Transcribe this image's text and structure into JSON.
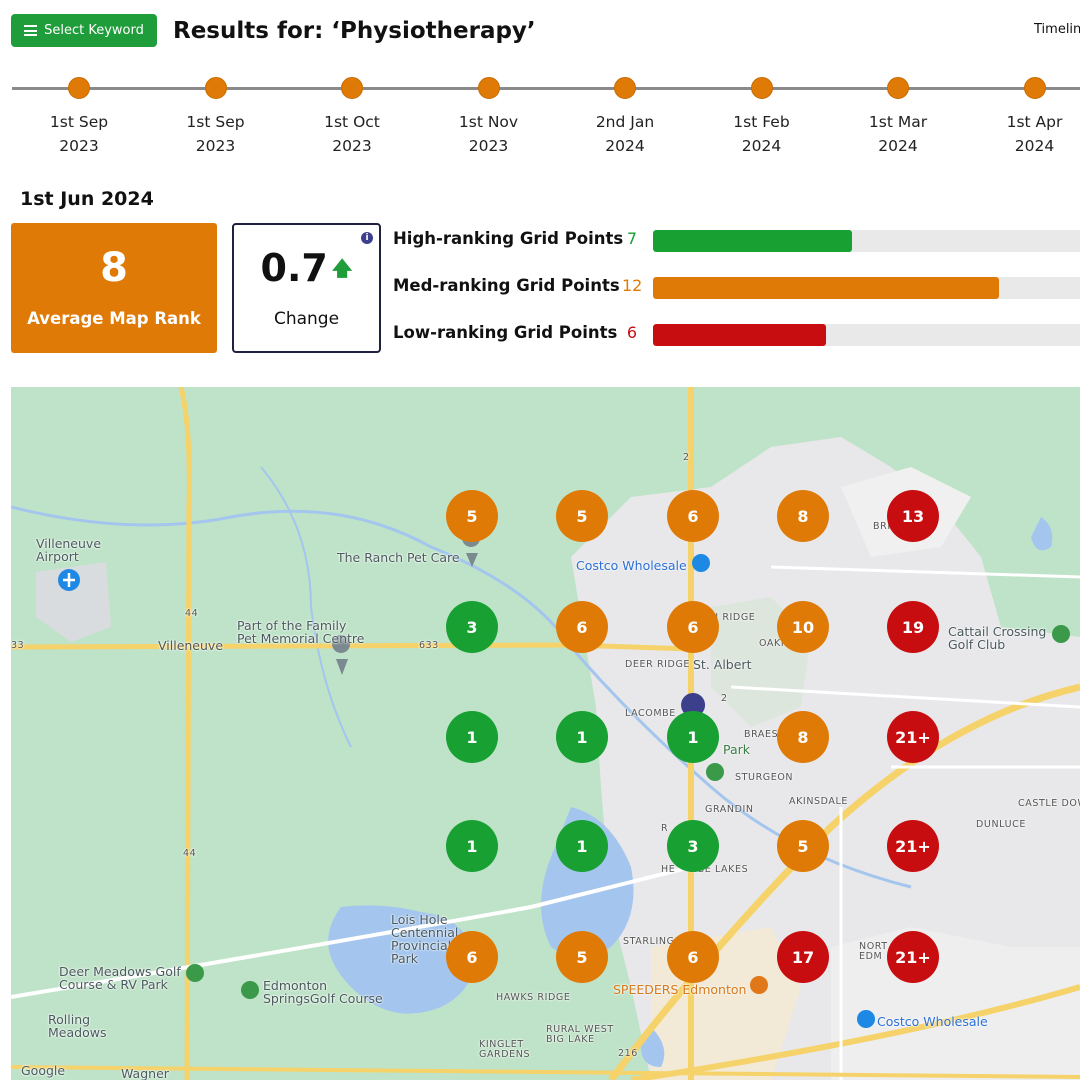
{
  "header": {
    "select_keyword_label": "Select Keyword",
    "results_title": "Results for: ‘Physiotherapy’",
    "timeline_link": "Timelin"
  },
  "timeline": [
    {
      "day": "1st Sep",
      "year": "2023"
    },
    {
      "day": "1st Sep",
      "year": "2023"
    },
    {
      "day": "1st Oct",
      "year": "2023"
    },
    {
      "day": "1st Nov",
      "year": "2023"
    },
    {
      "day": "2nd Jan",
      "year": "2024"
    },
    {
      "day": "1st Feb",
      "year": "2024"
    },
    {
      "day": "1st Mar",
      "year": "2024"
    },
    {
      "day": "1st Apr",
      "year": "2024"
    }
  ],
  "stats": {
    "current_date": "1st Jun 2024",
    "average_map_rank": "8",
    "average_map_rank_label": "Average Map Rank",
    "change_value": "0.7",
    "change_label": "Change",
    "change_direction_icon": "up-arrow-icon"
  },
  "rankings": [
    {
      "label": "High-ranking Grid Points",
      "count": "7",
      "fraction": 0.465,
      "color": "#18a033"
    },
    {
      "label": "Med-ranking Grid Points",
      "count": "12",
      "fraction": 0.81,
      "color": "#e07a06"
    },
    {
      "label": "Low-ranking Grid Points",
      "count": "6",
      "fraction": 0.405,
      "color": "#c80d10"
    }
  ],
  "grid_ranks": [
    [
      "5",
      "5",
      "6",
      "8",
      "13"
    ],
    [
      "3",
      "6",
      "6",
      "10",
      "19"
    ],
    [
      "1",
      "1",
      "1",
      "8",
      "21+"
    ],
    [
      "1",
      "1",
      "3",
      "5",
      "21+"
    ],
    [
      "6",
      "5",
      "6",
      "17",
      "21+"
    ]
  ],
  "grid_levels": [
    [
      "med",
      "med",
      "med",
      "med",
      "low"
    ],
    [
      "high",
      "med",
      "med",
      "med",
      "low"
    ],
    [
      "high",
      "high",
      "high",
      "med",
      "low"
    ],
    [
      "high",
      "high",
      "high",
      "med",
      "low"
    ],
    [
      "med",
      "med",
      "med",
      "low",
      "low"
    ]
  ],
  "map_labels": {
    "villeneuve_airport": "Villeneuve\nAirport",
    "ranch_pet_care": "The Ranch Pet Care",
    "costco_north": "Costco Wholesale",
    "pet_memorial": "Part of the Family\nPet Memorial Centre",
    "villeneuve": "Villeneuve",
    "deer_ridge": "DEER RIDGE",
    "st_albert": "St. Albert",
    "lacombe": "LACOMBE",
    "ridge": "N RIDGE",
    "oakm": "OAKM",
    "braes": "BRAES",
    "park": "Park",
    "sturgeon": "STURGEON",
    "grandin": "GRANDIN",
    "akinsdale": "AKINSDALE",
    "castle_downs": "CASTLE DOW",
    "dunluce": "DUNLUCE",
    "heritage_lakes": "HE    AGE LAKES",
    "cattail_crossing": "Cattail Crossing\nGolf Club",
    "bris": "BRIS",
    "lois_hole": "Lois Hole\nCentennial\nProvincial\nPark",
    "deer_meadows": "Deer Meadows Golf\nCourse & RV Park",
    "edmonton_springs": "Edmonton\nSpringsGolf Course",
    "rolling_meadows": "Rolling\nMeadows",
    "starling": "STARLING",
    "north_edm": "NORT\nEDM",
    "speeders": "SPEEDERS Edmonton",
    "hawks_ridge": "HAWKS RIDGE",
    "kinglet": "KINGLET\nGARDENS",
    "rural_west": "RURAL WEST\nBIG LAKE",
    "costco_south": "Costco Wholesale",
    "google": "Google",
    "wagner": "Wagner",
    "hwy_2": "2",
    "hwy_44": "44",
    "hwy_44b": "44",
    "hwy_633": "633",
    "hwy_33": "33",
    "hwy_216": "216",
    "hwy_2b": "2",
    "r": "R"
  }
}
